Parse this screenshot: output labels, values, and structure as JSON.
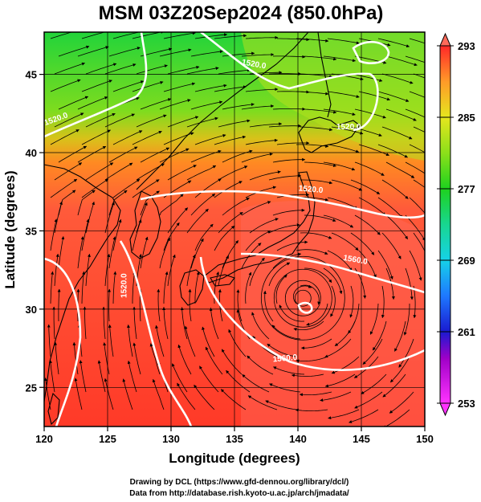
{
  "title": "MSM 03Z20Sep2024 (850.0hPa)",
  "x_axis": {
    "label": "Longitude (degrees)",
    "min": 120,
    "max": 150,
    "ticks": [
      120,
      125,
      130,
      135,
      140,
      145,
      150
    ]
  },
  "y_axis": {
    "label": "Latitude  (degrees)",
    "min": 22.5,
    "max": 47.7,
    "ticks": [
      25,
      30,
      35,
      40,
      45
    ]
  },
  "colorbar": {
    "ticks": [
      253,
      261,
      269,
      277,
      285,
      293
    ],
    "min": 253,
    "max": 293,
    "stops": [
      {
        "v": 253,
        "color": "#ff33ff"
      },
      {
        "v": 258,
        "color": "#a000c8"
      },
      {
        "v": 261,
        "color": "#1a1ad0"
      },
      {
        "v": 265,
        "color": "#1e78ff"
      },
      {
        "v": 269,
        "color": "#16d2e8"
      },
      {
        "v": 273,
        "color": "#18d690"
      },
      {
        "v": 277,
        "color": "#1ed21e"
      },
      {
        "v": 281,
        "color": "#8ce01a"
      },
      {
        "v": 285,
        "color": "#e6e61e"
      },
      {
        "v": 289,
        "color": "#ff9a28"
      },
      {
        "v": 293,
        "color": "#ff2828"
      }
    ]
  },
  "contour_labels": [
    {
      "text": "1520.0",
      "lon": 121.0,
      "lat": 42.0,
      "angle": -20
    },
    {
      "text": "1520.0",
      "lon": 136.5,
      "lat": 45.5,
      "angle": 10
    },
    {
      "text": "1520.0",
      "lon": 144.0,
      "lat": 41.5,
      "angle": 0
    },
    {
      "text": "1520.0",
      "lon": 141.0,
      "lat": 37.5,
      "angle": 5
    },
    {
      "text": "1560.0",
      "lon": 144.5,
      "lat": 33.0,
      "angle": 10
    },
    {
      "text": "1560.0",
      "lon": 139.0,
      "lat": 26.7,
      "angle": -5
    },
    {
      "text": "1520.0",
      "lon": 126.5,
      "lat": 31.5,
      "angle": -90
    }
  ],
  "cyclone_center": {
    "lon": 140.4,
    "lat": 30.7
  },
  "credits": [
    "Drawing by DCL (https://www.gfd-dennou.org/library/dcl/)",
    "Data from http://database.rish.kyoto-u.ac.jp/arch/jmadata/"
  ]
}
